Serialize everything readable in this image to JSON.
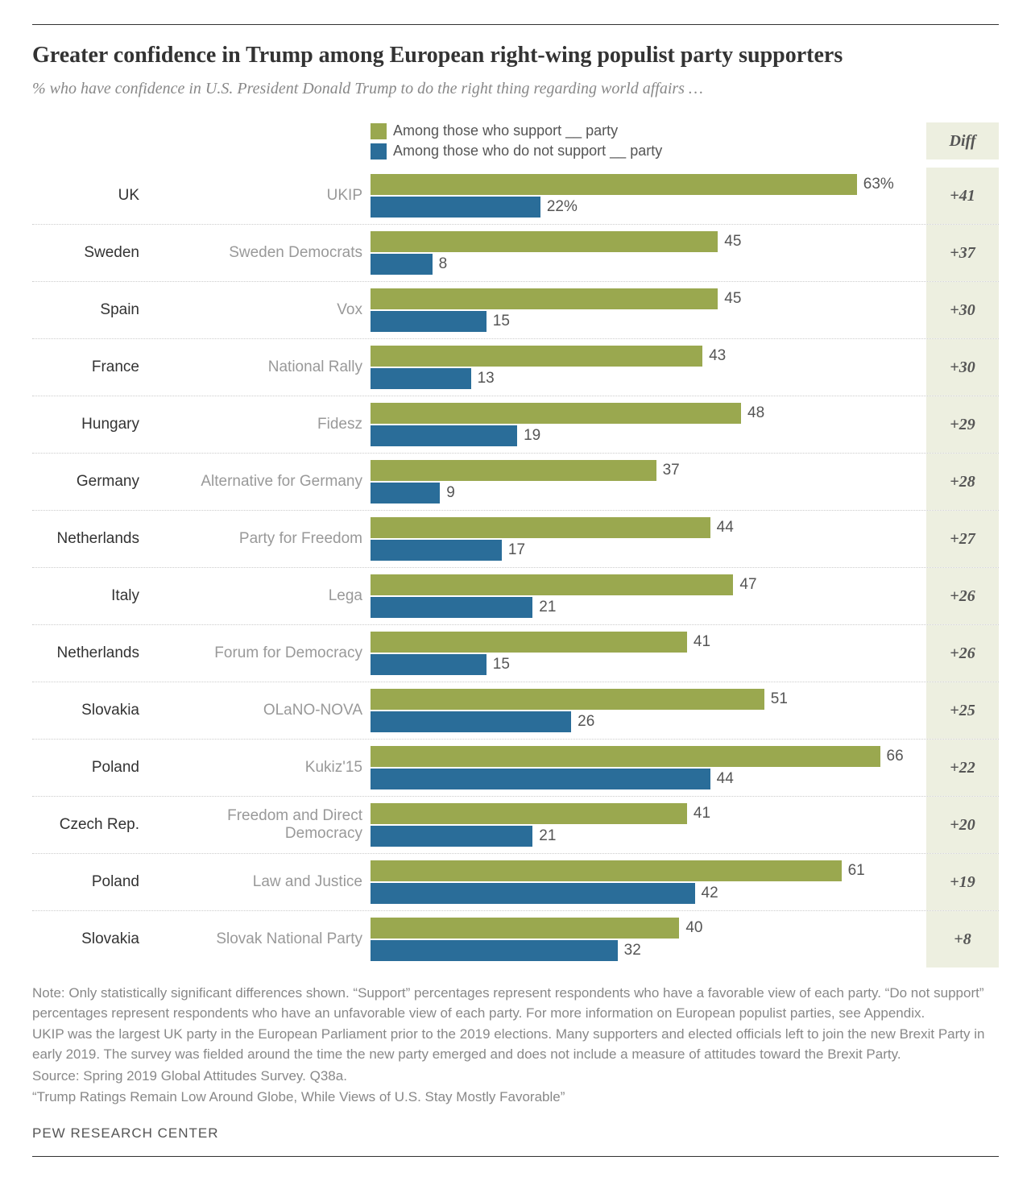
{
  "title": "Greater confidence in Trump among European right-wing populist party supporters",
  "subtitle": "% who have confidence in U.S. President Donald Trump to do the right thing regarding world affairs …",
  "legend": {
    "support": "Among those who support __ party",
    "notSupport": "Among those who do not support __ party",
    "diffHeader": "Diff"
  },
  "colors": {
    "support": "#9aa84f",
    "notSupport": "#2a6d99",
    "diffBg": "#edefe0",
    "barLabel": "#555555"
  },
  "chart": {
    "maxValue": 72,
    "barHeight": 26,
    "firstRowSuffix": "%"
  },
  "rows": [
    {
      "country": "UK",
      "party": "UKIP",
      "support": 63,
      "notSupport": 22,
      "diff": "+41"
    },
    {
      "country": "Sweden",
      "party": "Sweden Democrats",
      "support": 45,
      "notSupport": 8,
      "diff": "+37"
    },
    {
      "country": "Spain",
      "party": "Vox",
      "support": 45,
      "notSupport": 15,
      "diff": "+30"
    },
    {
      "country": "France",
      "party": "National Rally",
      "support": 43,
      "notSupport": 13,
      "diff": "+30"
    },
    {
      "country": "Hungary",
      "party": "Fidesz",
      "support": 48,
      "notSupport": 19,
      "diff": "+29"
    },
    {
      "country": "Germany",
      "party": "Alternative for Germany",
      "support": 37,
      "notSupport": 9,
      "diff": "+28"
    },
    {
      "country": "Netherlands",
      "party": "Party for Freedom",
      "support": 44,
      "notSupport": 17,
      "diff": "+27"
    },
    {
      "country": "Italy",
      "party": "Lega",
      "support": 47,
      "notSupport": 21,
      "diff": "+26"
    },
    {
      "country": "Netherlands",
      "party": "Forum for Democracy",
      "support": 41,
      "notSupport": 15,
      "diff": "+26"
    },
    {
      "country": "Slovakia",
      "party": "OLaNO-NOVA",
      "support": 51,
      "notSupport": 26,
      "diff": "+25"
    },
    {
      "country": "Poland",
      "party": "Kukiz'15",
      "support": 66,
      "notSupport": 44,
      "diff": "+22"
    },
    {
      "country": "Czech Rep.",
      "party": "Freedom and Direct Democracy",
      "support": 41,
      "notSupport": 21,
      "diff": "+20"
    },
    {
      "country": "Poland",
      "party": "Law and Justice",
      "support": 61,
      "notSupport": 42,
      "diff": "+19"
    },
    {
      "country": "Slovakia",
      "party": "Slovak National Party",
      "support": 40,
      "notSupport": 32,
      "diff": "+8"
    }
  ],
  "notes": {
    "p1": "Note: Only statistically significant differences shown. “Support” percentages represent respondents who have a favorable view of each party. “Do not support” percentages represent respondents who have an unfavorable view of each party. For more information on European populist parties, see Appendix.",
    "p2": "UKIP was the largest UK party in the European Parliament prior to the 2019 elections. Many supporters and elected officials left to join the new Brexit Party in early 2019. The survey was fielded around the time the new party emerged and does not include a measure of attitudes toward the Brexit Party.",
    "p3": "Source: Spring 2019 Global Attitudes Survey. Q38a.",
    "p4": "“Trump Ratings Remain Low Around Globe, While Views of U.S. Stay Mostly Favorable”"
  },
  "brand": "PEW RESEARCH CENTER"
}
